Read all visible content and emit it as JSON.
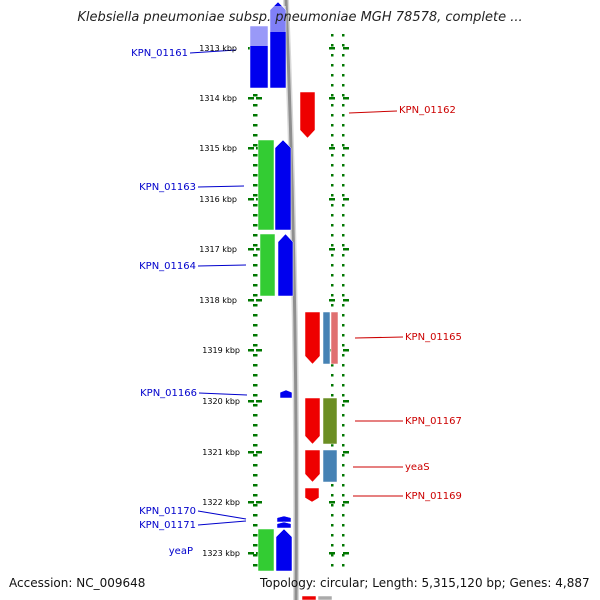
{
  "title": "Klebsiella pneumoniae subsp. pneumoniae MGH 78578, complete ...",
  "accession": "Accession: NC_009648",
  "topology": "Topology: circular; Length: 5,315,120 bp; Genes: 4,887",
  "kbp_labels": [
    "1313 kbp",
    "1314 kbp",
    "1315 kbp",
    "1316 kbp",
    "1317 kbp",
    "1318 kbp",
    "1319 kbp",
    "1320 kbp",
    "1321 kbp",
    "1322 kbp",
    "1323 kbp"
  ],
  "colors": {
    "forward_label": "#0000cc",
    "reverse_label": "#cc0000",
    "blue_feature": "#0000ee",
    "green_feature": "#33cc33",
    "red_feature": "#ee0000",
    "steel_feature": "#4682b4",
    "olive_feature": "#6b8e23",
    "tick": "#007700",
    "backbone": "#8f8f8f"
  },
  "gene_labels_left": [
    "KPN_01161",
    "KPN_01163",
    "KPN_01164",
    "KPN_01166",
    "KPN_01170",
    "KPN_01171",
    "yeaP"
  ],
  "gene_labels_right": [
    "KPN_01162",
    "KPN_01165",
    "KPN_01167",
    "yeaS",
    "KPN_01169"
  ]
}
